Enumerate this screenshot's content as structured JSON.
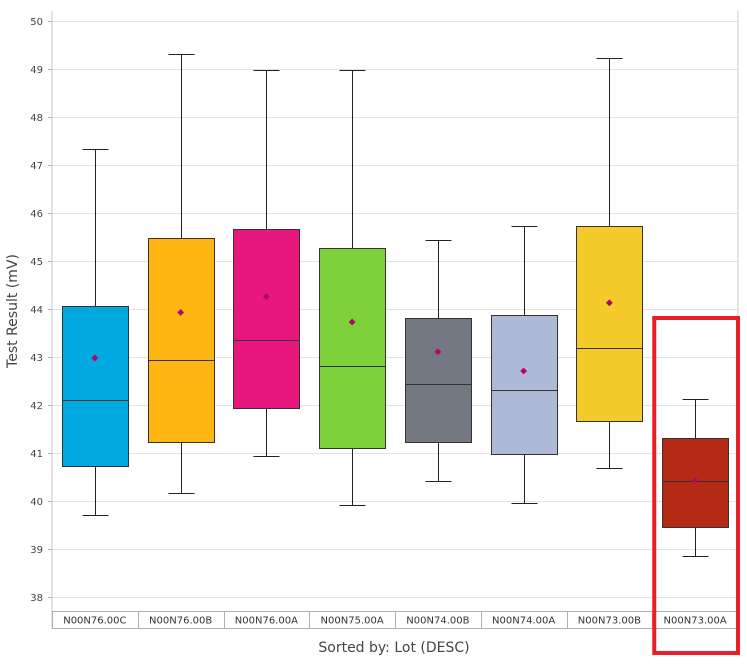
{
  "chart_data": {
    "type": "boxplot",
    "ylabel": "Test Result (mV)",
    "xlabel": "Sorted by: Lot (DESC)",
    "ylim": [
      37.7,
      50.2
    ],
    "yticks": [
      "38",
      "39",
      "40",
      "41",
      "42",
      "43",
      "44",
      "45",
      "46",
      "47",
      "48",
      "49",
      "50"
    ],
    "grid": "horizontal",
    "categories": [
      "N00N76.00C",
      "N00N76.00B",
      "N00N76.00A",
      "N00N75.00A",
      "N00N74.00B",
      "N00N74.00A",
      "N00N73.00B",
      "N00N73.00A"
    ],
    "boxes": [
      {
        "min": 39.7,
        "q1": 40.73,
        "median": 42.1,
        "q3": 44.05,
        "max": 47.33,
        "mean": 42.97,
        "color": "#00a9e0"
      },
      {
        "min": 40.15,
        "q1": 41.22,
        "median": 42.93,
        "q3": 45.48,
        "max": 49.3,
        "mean": 43.92,
        "color": "#ffb612"
      },
      {
        "min": 40.92,
        "q1": 41.92,
        "median": 43.35,
        "q3": 45.66,
        "max": 48.98,
        "mean": 44.25,
        "color": "#e8177e"
      },
      {
        "min": 39.9,
        "q1": 41.1,
        "median": 42.8,
        "q3": 45.26,
        "max": 48.98,
        "mean": 43.72,
        "color": "#7ed13a"
      },
      {
        "min": 40.4,
        "q1": 41.23,
        "median": 42.42,
        "q3": 43.8,
        "max": 45.42,
        "mean": 43.1,
        "color": "#737882"
      },
      {
        "min": 39.96,
        "q1": 40.98,
        "median": 42.3,
        "q3": 43.86,
        "max": 45.73,
        "mean": 42.7,
        "color": "#adb9d6"
      },
      {
        "min": 40.67,
        "q1": 41.66,
        "median": 43.17,
        "q3": 45.73,
        "max": 49.22,
        "mean": 44.12,
        "color": "#f4cb2b"
      },
      {
        "min": 38.85,
        "q1": 39.46,
        "median": 40.4,
        "q3": 41.3,
        "max": 42.12,
        "mean": 40.42,
        "color": "#b52a15"
      }
    ],
    "mean_marker_color": "#c0006a",
    "highlight": {
      "category": "N00N73.00A",
      "color": "#e8202a"
    }
  }
}
